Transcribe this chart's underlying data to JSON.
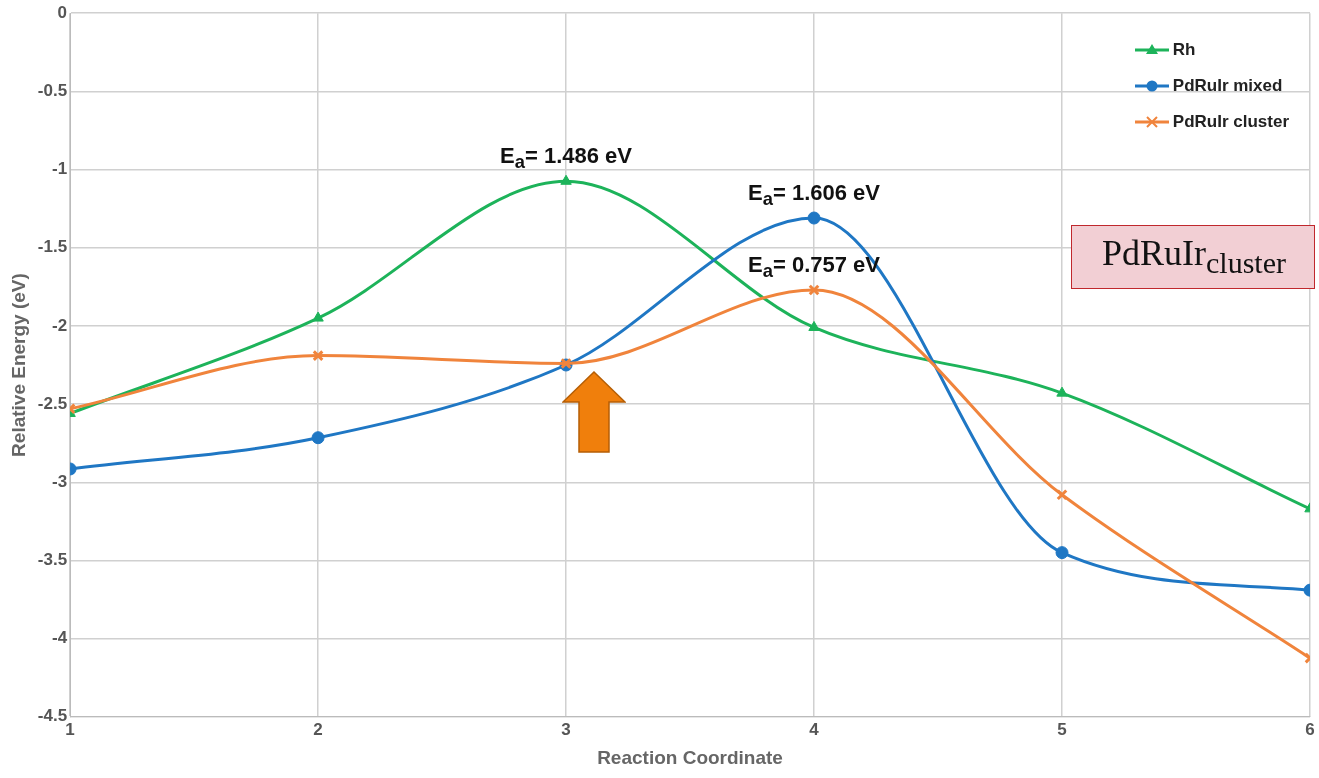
{
  "chart_data": {
    "type": "line",
    "xlabel": "Reaction Coordinate",
    "ylabel": "Relative Energy (eV)",
    "x": [
      1,
      2,
      3,
      4,
      5,
      6
    ],
    "xlim": [
      1,
      6
    ],
    "xticks": [
      1,
      2,
      3,
      4,
      5,
      6
    ],
    "ylim": [
      -4.5,
      0
    ],
    "yticks": [
      -4.5,
      -4,
      -3.5,
      -3,
      -2.5,
      -2,
      -1.5,
      -1,
      -0.5,
      0
    ],
    "grid": true,
    "legend": "top right",
    "series": [
      {
        "name": "Rh",
        "color": "#1db35a",
        "marker": "triangle",
        "values": [
          -2.56,
          -1.95,
          -1.075,
          -2.01,
          -2.43,
          -3.17
        ]
      },
      {
        "name": "PdRuIr mixed",
        "color": "#1f77c4",
        "marker": "circle",
        "values": [
          -2.915,
          -2.715,
          -2.25,
          -1.31,
          -3.45,
          -3.69
        ]
      },
      {
        "name": "PdRuIr cluster",
        "color": "#f0843c",
        "marker": "cross",
        "values": [
          -2.53,
          -2.19,
          -2.24,
          -1.77,
          -3.08,
          -4.125
        ]
      }
    ],
    "annotations": [
      {
        "text": "E$_{a}$= 1.486 eV",
        "y": -1.075
      },
      {
        "text": "E$_{a}$= 1.606 eV",
        "y": -1.31
      },
      {
        "text": "E$_{a}$= 0.757 eV",
        "y": -1.77
      },
      "PdRuIr$_{cluster}$"
    ]
  }
}
